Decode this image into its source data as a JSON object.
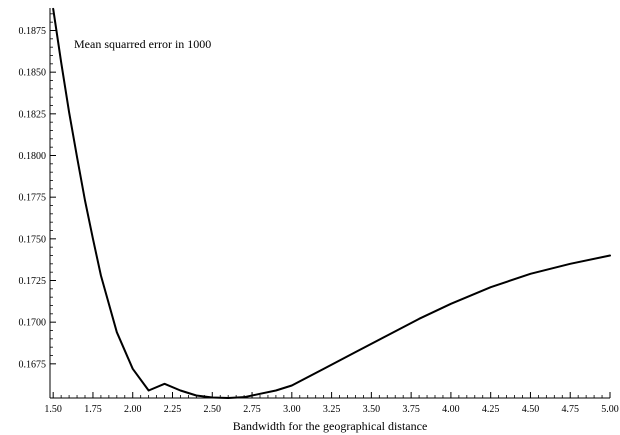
{
  "chart_data": {
    "type": "line",
    "title": "",
    "xlabel": "Bandwidth for the geographical distance",
    "ylabel": "",
    "annotation": "Mean squarred error in 1000",
    "xlim": [
      1.48,
      5.0
    ],
    "ylim": [
      0.16545,
      0.18885
    ],
    "x_ticks": [
      {
        "value": 1.5,
        "label": "1.50"
      },
      {
        "value": 1.75,
        "label": "1.75"
      },
      {
        "value": 2.0,
        "label": "2.00"
      },
      {
        "value": 2.25,
        "label": "2.25"
      },
      {
        "value": 2.5,
        "label": "2.50"
      },
      {
        "value": 2.75,
        "label": "2.75"
      },
      {
        "value": 3.0,
        "label": "3.00"
      },
      {
        "value": 3.25,
        "label": "3.25"
      },
      {
        "value": 3.5,
        "label": "3.50"
      },
      {
        "value": 3.75,
        "label": "3.75"
      },
      {
        "value": 4.0,
        "label": "4.00"
      },
      {
        "value": 4.25,
        "label": "4.25"
      },
      {
        "value": 4.5,
        "label": "4.50"
      },
      {
        "value": 4.75,
        "label": "4.75"
      },
      {
        "value": 5.0,
        "label": "5.00"
      }
    ],
    "y_ticks": [
      {
        "value": 0.1675,
        "label": "0.1675"
      },
      {
        "value": 0.17,
        "label": "0.1700"
      },
      {
        "value": 0.1725,
        "label": "0.1725"
      },
      {
        "value": 0.175,
        "label": "0.1750"
      },
      {
        "value": 0.1775,
        "label": "0.1775"
      },
      {
        "value": 0.18,
        "label": "0.1800"
      },
      {
        "value": 0.1825,
        "label": "0.1825"
      },
      {
        "value": 0.185,
        "label": "0.1850"
      },
      {
        "value": 0.1875,
        "label": "0.1875"
      }
    ],
    "grid": false,
    "legend": "none",
    "line_color": "#000000",
    "series": [
      {
        "x": [
          1.5,
          1.55,
          1.6,
          1.65,
          1.7,
          1.75,
          1.8,
          1.9,
          2.0,
          2.1,
          2.2,
          2.3,
          2.4,
          2.5,
          2.6,
          2.7,
          2.8,
          2.9,
          3.0,
          3.2,
          3.4,
          3.6,
          3.8,
          4.0,
          4.25,
          4.5,
          4.75,
          5.0
        ],
        "y": [
          0.1888,
          0.1856,
          0.1826,
          0.1799,
          0.1773,
          0.175,
          0.1728,
          0.1694,
          0.1672,
          0.1659,
          0.1663,
          0.1659,
          0.1656,
          0.16548,
          0.16545,
          0.1655,
          0.1657,
          0.1659,
          0.1662,
          0.1672,
          0.1682,
          0.1692,
          0.1702,
          0.1711,
          0.1721,
          0.1729,
          0.1735,
          0.174
        ]
      }
    ]
  }
}
